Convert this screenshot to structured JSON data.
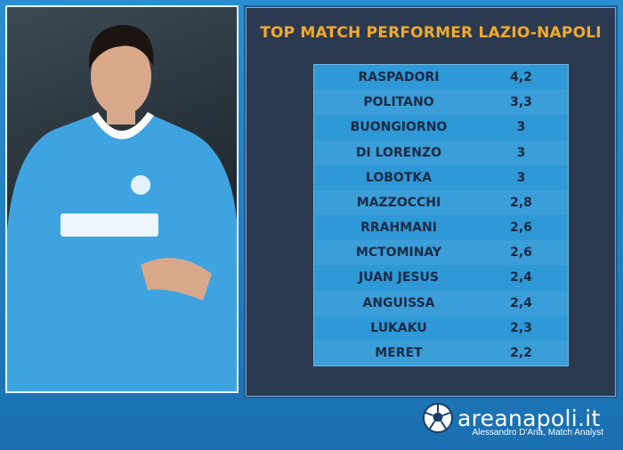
{
  "header": {
    "title": "TOP MATCH PERFORMER LAZIO-NAPOLI"
  },
  "table": {
    "rows": [
      [
        "RASPADORI",
        "4,2"
      ],
      [
        "POLITANO",
        "3,3"
      ],
      [
        "BUONGIORNO",
        "3"
      ],
      [
        "DI LORENZO",
        "3"
      ],
      [
        "LOBOTKA",
        "3"
      ],
      [
        "MAZZOCCHI",
        "2,8"
      ],
      [
        "RRAHMANI",
        "2,6"
      ],
      [
        "MCTOMINAY",
        "2,6"
      ],
      [
        "JUAN JESUS",
        "2,4"
      ],
      [
        "ANGUISSA",
        "2,4"
      ],
      [
        "LUKAKU",
        "2,3"
      ],
      [
        "MERET",
        "2,2"
      ]
    ]
  },
  "footer": {
    "brand": "areanapoli.it",
    "credit": "Alessandro D'Aria, Match Analyst"
  }
}
